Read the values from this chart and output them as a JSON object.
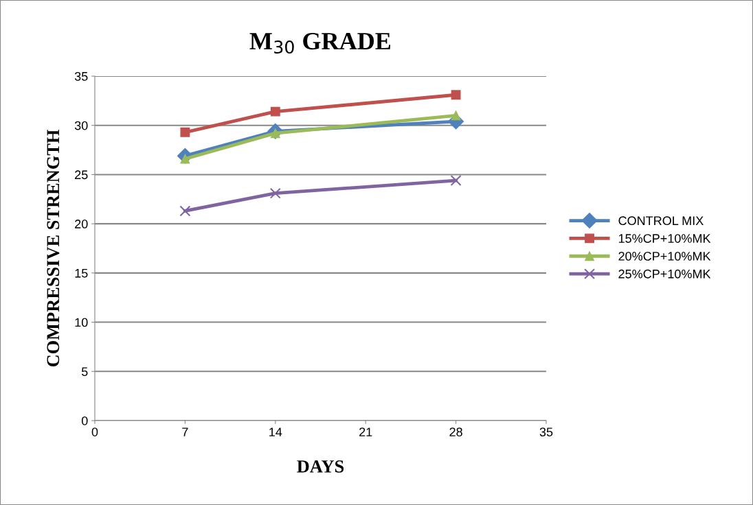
{
  "chart_data": {
    "type": "line",
    "title": "M$_{30}$ GRADE",
    "xlabel": "DAYS",
    "ylabel": "COMPRESSIVE STRENGTH",
    "x": [
      7,
      14,
      28
    ],
    "series": [
      {
        "name": "CONTROL MIX",
        "color": "#4f81bd",
        "marker": "diamond",
        "values": [
          26.9,
          29.4,
          30.4
        ]
      },
      {
        "name": "15%CP+10%MK",
        "color": "#c0504d",
        "marker": "square",
        "values": [
          29.3,
          31.4,
          33.1
        ]
      },
      {
        "name": "20%CP+10%MK",
        "color": "#9bbb59",
        "marker": "triangle",
        "values": [
          26.6,
          29.2,
          31.0
        ]
      },
      {
        "name": "25%CP+10%MK",
        "color": "#8064a2",
        "marker": "cross",
        "values": [
          21.3,
          23.1,
          24.4
        ]
      }
    ],
    "xlim": [
      0,
      35
    ],
    "xticks": [
      0,
      7,
      14,
      21,
      28,
      35
    ],
    "ylim": [
      0,
      35
    ],
    "yticks": [
      0,
      5,
      10,
      15,
      20,
      25,
      30,
      35
    ],
    "grid": "y",
    "legend": "right",
    "line_style": "solid"
  }
}
